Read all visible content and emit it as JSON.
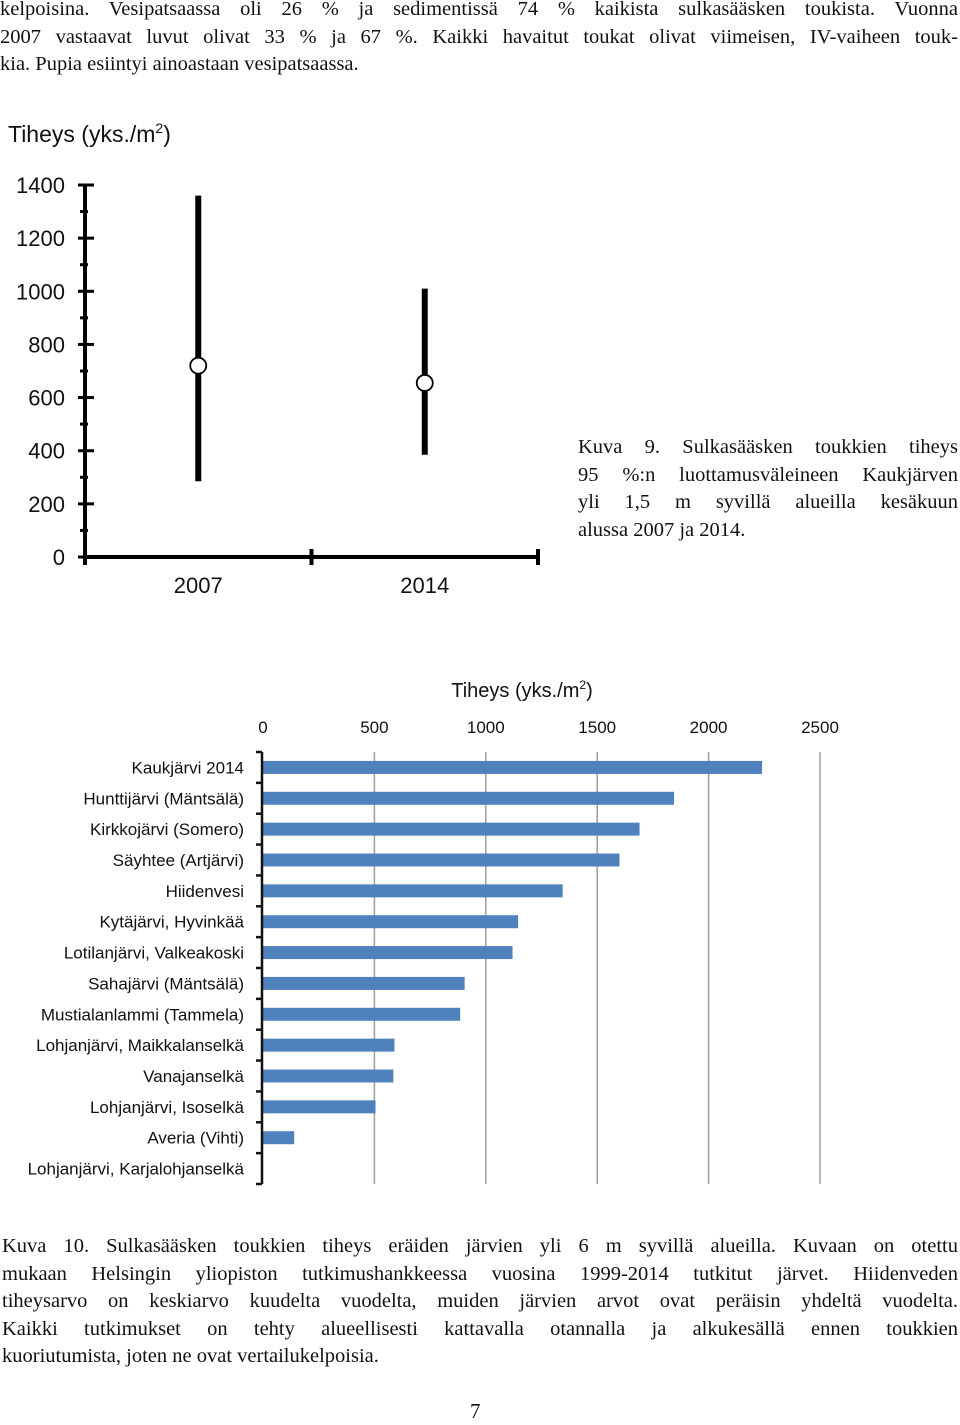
{
  "intro_lines": [
    "kelpoisina. Vesipatsaassa oli 26 % ja sedimentissä 74 % kaikista sulkasääsken toukista. Vuonna",
    "2007 vastaavat luvut olivat 33 % ja 67 %. Kaikki havaitut toukat olivat viimeisen, IV-vaiheen touk-",
    "kia. Pupia esiintyi ainoastaan vesipatsaassa."
  ],
  "figure9": {
    "caption_lines": [
      "Kuva 9. Sulkasääsken toukkien tiheys",
      "95 %:n luottamusväleineen Kaukjärven",
      "yli 1,5 m syvillä alueilla kesäkuun",
      "alussa 2007 ja 2014."
    ]
  },
  "figure10": {
    "caption_lines": [
      "Kuva 10. Sulkasääsken toukkien tiheys eräiden järvien yli 6 m syvillä alueilla. Kuvaan on otettu",
      "mukaan Helsingin yliopiston tutkimushankkeessa vuosina 1999-2014 tutkitut järvet. Hiidenveden",
      "tiheysarvo on keskiarvo kuudelta vuodelta, muiden järvien arvot ovat peräisin yhdeltä vuodelta.",
      "Kaikki tutkimukset on tehty alueellisesti kattavalla otannalla ja alkukesällä ennen toukkien",
      "kuoriutumista, joten ne ovat vertailukelpoisia."
    ]
  },
  "page_number": "7",
  "chart_data": [
    {
      "type": "scatter",
      "title": "",
      "ylabel": "Tiheys (yks./m",
      "ylabel_sup": "2",
      "ylabel_end": ")",
      "xlabel": "",
      "categories": [
        "2007",
        "2014"
      ],
      "y_ticks": [
        "0",
        "200",
        "400",
        "600",
        "800",
        "1000",
        "1200",
        "1400"
      ],
      "ylim": [
        0,
        1400
      ],
      "points": [
        {
          "x": "2007",
          "y": 720,
          "ci_low": 285,
          "ci_high": 1360
        },
        {
          "x": "2014",
          "y": 655,
          "ci_low": 385,
          "ci_high": 1010
        }
      ],
      "grid": false,
      "marker_color": "#ffffff",
      "line_color": "#000000"
    },
    {
      "type": "bar",
      "orientation": "horizontal",
      "title": "",
      "xlabel": "Tiheys (yks./m",
      "xlabel_sup": "2",
      "xlabel_end": ")",
      "x_ticks": [
        "0",
        "500",
        "1000",
        "1500",
        "2000",
        "2500"
      ],
      "xlim": [
        0,
        2500
      ],
      "grid": true,
      "bar_color": "#4f81bd",
      "categories": [
        "Kaukjärvi 2014",
        "Hunttijärvi (Mäntsälä)",
        "Kirkkojärvi (Somero)",
        "Säyhtee (Artjärvi)",
        "Hiidenvesi",
        "Kytäjärvi, Hyvinkää",
        "Lotilanjärvi, Valkeakoski",
        "Sahajärvi (Mäntsälä)",
        "Mustialanlammi (Tammela)",
        "Lohjanjärvi, Maikkalanselkä",
        "Vanajanselkä",
        "Lohjanjärvi, Isoselkä",
        "Averia (Vihti)",
        "Lohjanjärvi, Karjalohjanselkä"
      ],
      "values": [
        2240,
        1845,
        1690,
        1600,
        1345,
        1145,
        1120,
        905,
        885,
        590,
        585,
        505,
        140,
        0
      ]
    }
  ]
}
